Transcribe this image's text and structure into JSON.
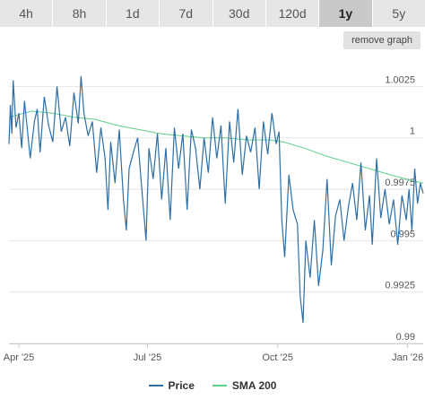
{
  "range_tabs": [
    {
      "label": "4h",
      "active": false
    },
    {
      "label": "8h",
      "active": false
    },
    {
      "label": "1d",
      "active": false
    },
    {
      "label": "7d",
      "active": false
    },
    {
      "label": "30d",
      "active": false
    },
    {
      "label": "120d",
      "active": false
    },
    {
      "label": "1y",
      "active": true
    },
    {
      "label": "5y",
      "active": false
    }
  ],
  "remove_graph_label": "remove graph",
  "legend": {
    "price_label": "Price",
    "sma_label": "SMA 200"
  },
  "colors": {
    "price": "#2d6fa6",
    "sma": "#5fd08c",
    "grid": "#e6e6e6"
  },
  "chart_data": {
    "type": "line",
    "xlim": [
      "2025-03-25",
      "2026-01-12"
    ],
    "ylim": [
      0.99,
      1.004
    ],
    "y_ticks": [
      {
        "value": 0.99,
        "label": "0.99"
      },
      {
        "value": 0.9925,
        "label": "0.9925"
      },
      {
        "value": 0.995,
        "label": "0.995"
      },
      {
        "value": 0.9975,
        "label": "0.9975"
      },
      {
        "value": 1.0,
        "label": "1"
      },
      {
        "value": 1.0025,
        "label": "1.0025"
      }
    ],
    "x_ticks": [
      {
        "date": "2025-04-01",
        "label": "Apr '25"
      },
      {
        "date": "2025-07-01",
        "label": "Jul '25"
      },
      {
        "date": "2025-10-01",
        "label": "Oct '25"
      },
      {
        "date": "2026-01-01",
        "label": "Jan '26"
      }
    ],
    "grid": true,
    "legend_position": "bottom-center",
    "series": [
      {
        "name": "Price",
        "x": [
          "2025-03-25",
          "2025-03-26",
          "2025-03-27",
          "2025-03-28",
          "2025-03-30",
          "2025-04-01",
          "2025-04-03",
          "2025-04-05",
          "2025-04-07",
          "2025-04-09",
          "2025-04-12",
          "2025-04-14",
          "2025-04-16",
          "2025-04-19",
          "2025-04-22",
          "2025-04-25",
          "2025-04-28",
          "2025-05-01",
          "2025-05-04",
          "2025-05-07",
          "2025-05-10",
          "2025-05-13",
          "2025-05-15",
          "2025-05-17",
          "2025-05-20",
          "2025-05-23",
          "2025-05-26",
          "2025-05-29",
          "2025-06-01",
          "2025-06-03",
          "2025-06-05",
          "2025-06-08",
          "2025-06-11",
          "2025-06-14",
          "2025-06-16",
          "2025-06-18",
          "2025-06-21",
          "2025-06-24",
          "2025-06-27",
          "2025-06-30",
          "2025-07-02",
          "2025-07-05",
          "2025-07-08",
          "2025-07-11",
          "2025-07-14",
          "2025-07-17",
          "2025-07-20",
          "2025-07-23",
          "2025-07-26",
          "2025-07-29",
          "2025-08-01",
          "2025-08-04",
          "2025-08-07",
          "2025-08-10",
          "2025-08-13",
          "2025-08-16",
          "2025-08-19",
          "2025-08-22",
          "2025-08-25",
          "2025-08-28",
          "2025-08-31",
          "2025-09-03",
          "2025-09-06",
          "2025-09-09",
          "2025-09-12",
          "2025-09-15",
          "2025-09-18",
          "2025-09-21",
          "2025-09-24",
          "2025-09-27",
          "2025-09-30",
          "2025-10-02",
          "2025-10-04",
          "2025-10-06",
          "2025-10-09",
          "2025-10-12",
          "2025-10-15",
          "2025-10-17",
          "2025-10-19",
          "2025-10-21",
          "2025-10-24",
          "2025-10-27",
          "2025-10-30",
          "2025-11-02",
          "2025-11-05",
          "2025-11-08",
          "2025-11-11",
          "2025-11-14",
          "2025-11-17",
          "2025-11-20",
          "2025-11-23",
          "2025-11-26",
          "2025-11-29",
          "2025-12-02",
          "2025-12-05",
          "2025-12-07",
          "2025-12-10",
          "2025-12-13",
          "2025-12-16",
          "2025-12-19",
          "2025-12-22",
          "2025-12-25",
          "2025-12-28",
          "2025-12-31",
          "2026-01-02",
          "2026-01-04",
          "2026-01-06",
          "2026-01-08",
          "2026-01-10",
          "2026-01-12"
        ],
        "y": [
          0.9997,
          1.0016,
          1.0002,
          1.0028,
          1.0005,
          1.0012,
          0.9995,
          1.0018,
          1.0004,
          0.999,
          1.0008,
          1.0014,
          0.9993,
          1.002,
          1.0006,
          0.9998,
          1.0025,
          1.0003,
          1.001,
          0.9996,
          1.0022,
          1.0007,
          1.003,
          1.0012,
          1.0001,
          1.0008,
          0.9983,
          1.0005,
          0.999,
          0.9965,
          0.9998,
          0.9978,
          1.0004,
          0.997,
          0.9955,
          0.9985,
          0.9993,
          1.0,
          0.9975,
          0.995,
          0.9995,
          0.998,
          1.0002,
          0.997,
          0.9995,
          0.996,
          1.0005,
          0.9985,
          1.0002,
          0.9965,
          1.0004,
          0.9995,
          0.9975,
          1.0,
          0.9983,
          1.001,
          0.999,
          1.0006,
          0.9968,
          1.0008,
          0.9988,
          1.0014,
          0.9982,
          1.0001,
          0.9993,
          1.0005,
          0.9975,
          1.0008,
          0.9992,
          1.0012,
          0.9997,
          1.0003,
          0.996,
          0.9942,
          0.9982,
          0.9965,
          0.9958,
          0.9923,
          0.991,
          0.995,
          0.9932,
          0.996,
          0.9928,
          0.9945,
          0.998,
          0.9938,
          0.9962,
          0.997,
          0.995,
          0.9966,
          0.9978,
          0.996,
          0.9988,
          0.9955,
          0.9972,
          0.9948,
          0.999,
          0.9961,
          0.9975,
          0.9958,
          0.997,
          0.9948,
          0.9972,
          0.996,
          0.9975,
          0.9955,
          0.9985,
          0.9968,
          0.9978,
          0.9973
        ]
      },
      {
        "name": "SMA 200",
        "x": [
          "2025-03-25",
          "2025-04-10",
          "2025-04-25",
          "2025-05-10",
          "2025-05-25",
          "2025-06-10",
          "2025-06-25",
          "2025-07-10",
          "2025-07-25",
          "2025-08-10",
          "2025-08-25",
          "2025-09-10",
          "2025-09-25",
          "2025-10-05",
          "2025-10-20",
          "2025-11-05",
          "2025-11-20",
          "2025-12-05",
          "2025-12-20",
          "2026-01-05",
          "2026-01-12"
        ],
        "y": [
          1.001,
          1.0013,
          1.0012,
          1.001,
          1.0009,
          1.0006,
          1.0004,
          1.0002,
          1.0001,
          1.0,
          1.0,
          0.9999,
          0.9999,
          0.9998,
          0.9995,
          0.9991,
          0.9988,
          0.9985,
          0.9982,
          0.9979,
          0.9978
        ]
      }
    ]
  }
}
